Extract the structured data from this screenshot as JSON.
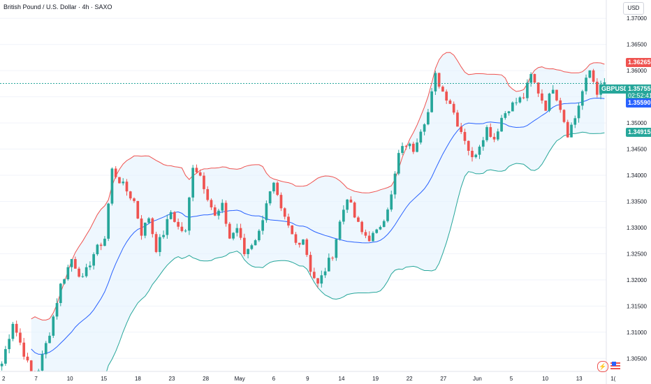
{
  "header": {
    "title": "British Pound / U.S. Dollar · 4h · SAXO",
    "currency_button": "USD"
  },
  "labels": {
    "upper_band": "1.36265",
    "symbol": "GBPUSD",
    "last_price": "1.35755",
    "countdown": "02:52:41",
    "middle_band": "1.35590",
    "lower_band": "1.34915"
  },
  "colors": {
    "bull": "#26a69a",
    "bear": "#ef5350",
    "upper_band": "#ef5350",
    "lower_band": "#26a69a",
    "basis": "#2962ff",
    "band_fill": "#e3f2fd",
    "last_price_line": "#26a69a"
  },
  "icons": {
    "flash": "lightning-icon",
    "flag": "us-flag-icon"
  },
  "chart_data": {
    "type": "candlestick",
    "ylim": [
      1.3025,
      1.3735
    ],
    "y_ticks": [
      "1.37000",
      "1.36500",
      "1.36000",
      "1.35500",
      "1.35000",
      "1.34500",
      "1.34000",
      "1.33500",
      "1.33000",
      "1.32500",
      "1.32000",
      "1.31500",
      "1.31000",
      "1.30500"
    ],
    "x_ticks": [
      "2",
      "7",
      "10",
      "15",
      "18",
      "23",
      "28",
      "May",
      "6",
      "9",
      "14",
      "19",
      "22",
      "27",
      "Jun",
      "5",
      "10",
      "13",
      "1("
    ],
    "last_price": 1.35755,
    "indicators": {
      "bollinger_upper": 1.36265,
      "bollinger_basis": 1.3559,
      "bollinger_lower": 1.34915
    },
    "close_path": [
      [
        0,
        1.304
      ],
      [
        3,
        1.312
      ],
      [
        6,
        1.306
      ],
      [
        9,
        1.3
      ],
      [
        10,
        1.303
      ],
      [
        13,
        1.31
      ],
      [
        16,
        1.319
      ],
      [
        19,
        1.324
      ],
      [
        22,
        1.32
      ],
      [
        25,
        1.325
      ],
      [
        28,
        1.328
      ],
      [
        30,
        1.341
      ],
      [
        32,
        1.339
      ],
      [
        34,
        1.337
      ],
      [
        36,
        1.335
      ],
      [
        38,
        1.329
      ],
      [
        40,
        1.332
      ],
      [
        42,
        1.326
      ],
      [
        44,
        1.329
      ],
      [
        46,
        1.333
      ],
      [
        48,
        1.33
      ],
      [
        50,
        1.329
      ],
      [
        52,
        1.342
      ],
      [
        54,
        1.34
      ],
      [
        56,
        1.336
      ],
      [
        58,
        1.332
      ],
      [
        60,
        1.334
      ],
      [
        62,
        1.328
      ],
      [
        64,
        1.33
      ],
      [
        66,
        1.325
      ],
      [
        68,
        1.327
      ],
      [
        70,
        1.329
      ],
      [
        72,
        1.335
      ],
      [
        74,
        1.338
      ],
      [
        76,
        1.333
      ],
      [
        78,
        1.33
      ],
      [
        80,
        1.327
      ],
      [
        82,
        1.328
      ],
      [
        84,
        1.322
      ],
      [
        86,
        1.319
      ],
      [
        88,
        1.322
      ],
      [
        90,
        1.325
      ],
      [
        92,
        1.331
      ],
      [
        94,
        1.336
      ],
      [
        96,
        1.332
      ],
      [
        98,
        1.329
      ],
      [
        100,
        1.328
      ],
      [
        102,
        1.329
      ],
      [
        104,
        1.332
      ],
      [
        106,
        1.336
      ],
      [
        108,
        1.344
      ],
      [
        110,
        1.346
      ],
      [
        112,
        1.345
      ],
      [
        114,
        1.349
      ],
      [
        116,
        1.352
      ],
      [
        118,
        1.359
      ],
      [
        120,
        1.356
      ],
      [
        122,
        1.354
      ],
      [
        124,
        1.35
      ],
      [
        126,
        1.347
      ],
      [
        128,
        1.343
      ],
      [
        130,
        1.346
      ],
      [
        132,
        1.349
      ],
      [
        134,
        1.347
      ],
      [
        136,
        1.351
      ],
      [
        138,
        1.353
      ],
      [
        140,
        1.354
      ],
      [
        142,
        1.355
      ],
      [
        144,
        1.359
      ],
      [
        146,
        1.356
      ],
      [
        148,
        1.353
      ],
      [
        150,
        1.357
      ],
      [
        152,
        1.353
      ],
      [
        154,
        1.348
      ],
      [
        156,
        1.351
      ],
      [
        158,
        1.356
      ],
      [
        160,
        1.36
      ],
      [
        162,
        1.356
      ],
      [
        164,
        1.3575
      ]
    ]
  }
}
